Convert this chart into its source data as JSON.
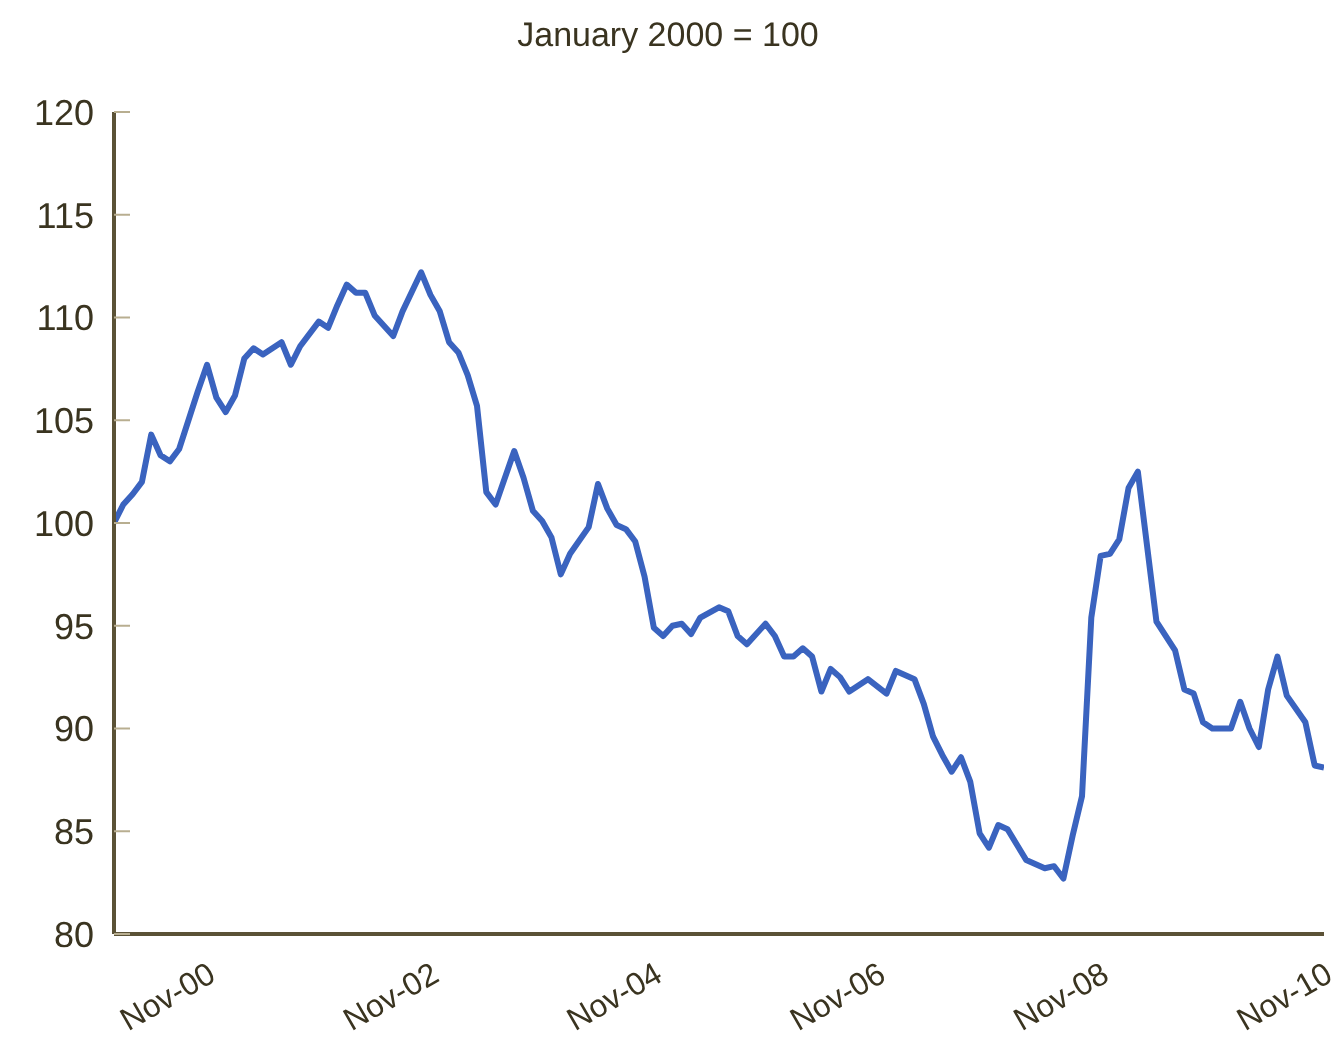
{
  "chart_data": {
    "type": "line",
    "title": "January 2000 = 100",
    "x": [
      "2000-01",
      "2000-02",
      "2000-03",
      "2000-04",
      "2000-05",
      "2000-06",
      "2000-07",
      "2000-08",
      "2000-10",
      "2000-11",
      "2000-12",
      "2001-01",
      "2001-02",
      "2001-03",
      "2001-04",
      "2001-05",
      "2001-07",
      "2001-08",
      "2001-09",
      "2001-11",
      "2001-12",
      "2002-01",
      "2002-02",
      "2002-03",
      "2002-04",
      "2002-05",
      "2002-07",
      "2002-08",
      "2002-10",
      "2002-11",
      "2002-12",
      "2003-01",
      "2003-02",
      "2003-03",
      "2003-04",
      "2003-05",
      "2003-06",
      "2003-08",
      "2003-09",
      "2003-10",
      "2003-11",
      "2003-12",
      "2004-01",
      "2004-02",
      "2004-04",
      "2004-05",
      "2004-06",
      "2004-07",
      "2004-08",
      "2004-09",
      "2004-10",
      "2004-11",
      "2004-12",
      "2005-01",
      "2005-02",
      "2005-03",
      "2005-04",
      "2005-06",
      "2005-07",
      "2005-08",
      "2005-09",
      "2005-11",
      "2005-12",
      "2006-01",
      "2006-02",
      "2006-03",
      "2006-04",
      "2006-05",
      "2006-06",
      "2006-07",
      "2006-08",
      "2006-10",
      "2006-12",
      "2007-01",
      "2007-03",
      "2007-04",
      "2007-05",
      "2007-06",
      "2007-07",
      "2007-08",
      "2007-09",
      "2007-10",
      "2007-11",
      "2007-12",
      "2008-01",
      "2008-03",
      "2008-05",
      "2008-06",
      "2008-07",
      "2008-08",
      "2008-09",
      "2008-10",
      "2008-11",
      "2008-12",
      "2009-01",
      "2009-02",
      "2009-03",
      "2009-05",
      "2009-07",
      "2009-08",
      "2009-09",
      "2009-10",
      "2009-11",
      "2010-01",
      "2010-02",
      "2010-03",
      "2010-04",
      "2010-05",
      "2010-06",
      "2010-07",
      "2010-09",
      "2010-10",
      "2010-11"
    ],
    "series": [
      {
        "color": "#3a63bf",
        "values": [
          100,
          100.9,
          101.4,
          102.0,
          104.3,
          103.3,
          103.0,
          103.6,
          106.4,
          107.7,
          106.1,
          105.4,
          106.2,
          108.0,
          108.5,
          108.2,
          108.8,
          107.7,
          108.6,
          109.8,
          109.5,
          110.6,
          111.6,
          111.2,
          111.2,
          110.1,
          109.1,
          110.3,
          112.2,
          111.1,
          110.3,
          108.8,
          108.3,
          107.2,
          105.7,
          101.5,
          100.9,
          103.5,
          102.2,
          100.6,
          100.1,
          99.3,
          97.5,
          98.5,
          99.8,
          101.9,
          100.7,
          99.9,
          99.7,
          99.1,
          97.4,
          94.9,
          94.5,
          95.0,
          95.1,
          94.6,
          95.4,
          95.9,
          95.7,
          94.5,
          94.1,
          95.1,
          94.5,
          93.5,
          93.5,
          93.9,
          93.5,
          91.8,
          92.9,
          92.5,
          91.8,
          92.4,
          91.7,
          92.8,
          92.4,
          91.2,
          89.6,
          88.7,
          87.9,
          88.6,
          87.4,
          84.9,
          84.2,
          85.3,
          85.1,
          83.6,
          83.2,
          83.3,
          82.7,
          84.8,
          86.7,
          95.4,
          98.4,
          98.5,
          99.2,
          101.7,
          102.5,
          95.2,
          93.8,
          91.9,
          91.7,
          90.3,
          90.0,
          90.0,
          91.3,
          90.0,
          89.1,
          91.9,
          93.5,
          91.6,
          90.3,
          88.2,
          88.1
        ]
      }
    ],
    "xlim": [
      "2000-01",
      "2010-11"
    ],
    "xticks": [
      {
        "value": "2000-11",
        "label": "Nov-00"
      },
      {
        "value": "2002-11",
        "label": "Nov-02"
      },
      {
        "value": "2004-11",
        "label": "Nov-04"
      },
      {
        "value": "2006-11",
        "label": "Nov-06"
      },
      {
        "value": "2008-11",
        "label": "Nov-08"
      },
      {
        "value": "2010-11",
        "label": "Nov-10"
      }
    ],
    "ylim": [
      80,
      120
    ],
    "yticks": [
      80,
      85,
      90,
      95,
      100,
      105,
      110,
      115,
      120
    ],
    "grid": false,
    "legend": false,
    "marker": "none",
    "line_style": "solid"
  }
}
